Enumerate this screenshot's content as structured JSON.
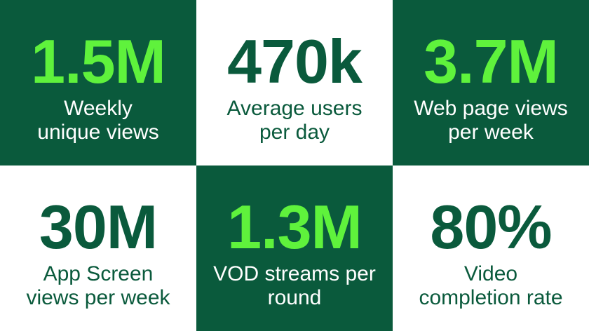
{
  "tiles": [
    {
      "value": "1.5M",
      "label_lines": [
        "Weekly",
        "unique views"
      ]
    },
    {
      "value": "470k",
      "label_lines": [
        "Average users",
        "per day"
      ]
    },
    {
      "value": "3.7M",
      "label_lines": [
        "Web page views",
        "per week"
      ]
    },
    {
      "value": "30M",
      "label_lines": [
        "App Screen",
        "views per week"
      ]
    },
    {
      "value": "1.3M",
      "label_lines": [
        "VOD streams per",
        "round"
      ]
    },
    {
      "value": "80%",
      "label_lines": [
        "Video",
        "completion rate"
      ]
    }
  ]
}
